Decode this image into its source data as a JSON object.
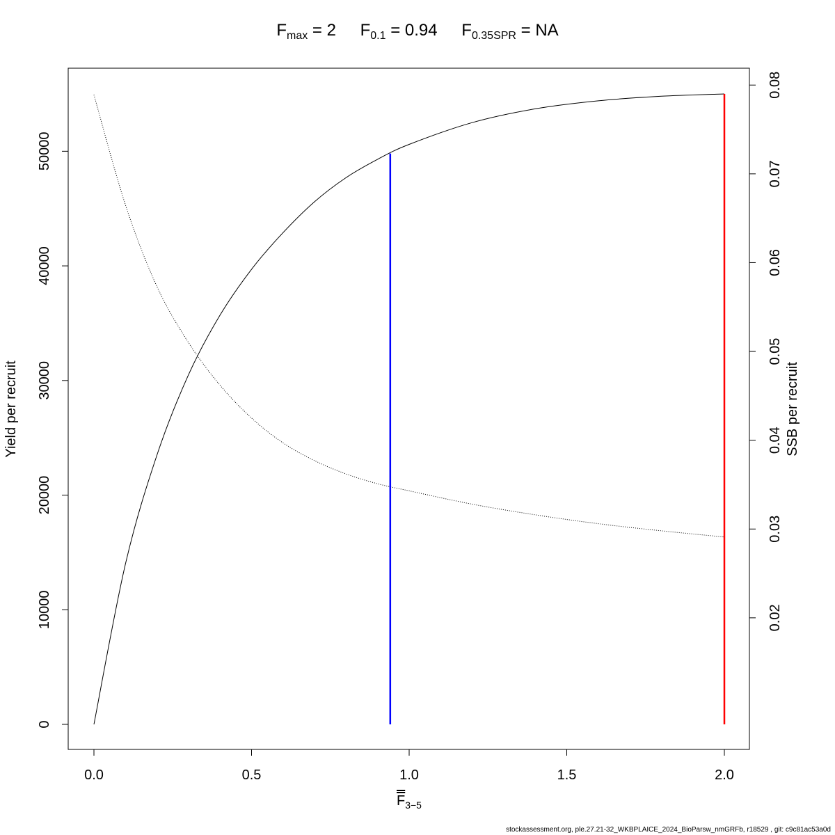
{
  "title": {
    "fmax": {
      "symbol": "F",
      "sub": "max",
      "value": "= 2"
    },
    "f01": {
      "symbol": "F",
      "sub": "0.1",
      "value": "= 0.94"
    },
    "fspr": {
      "symbol": "F",
      "sub": "0.35SPR",
      "value": "= NA"
    }
  },
  "xlabel": {
    "symbol": "F",
    "sub": "3−5"
  },
  "footer": "stockassessment.org, ple.27.21-32_WKBPLAICE_2024_BioParsw_nmGRFb, r18529 , git: c9c81ac53a0d",
  "chart_data": {
    "type": "line",
    "xlabel": "F3-5",
    "ylabel": "Yield per recruit",
    "y2label": "SSB per recruit",
    "xlim": [
      0,
      2
    ],
    "ylim": [
      0,
      55000
    ],
    "y2lim": [
      0.008,
      0.079
    ],
    "x_ticks": [
      "0.0",
      "0.5",
      "1.0",
      "1.5",
      "2.0"
    ],
    "y_ticks": [
      "0",
      "10000",
      "20000",
      "30000",
      "40000",
      "50000"
    ],
    "y2_ticks": [
      "0.02",
      "0.03",
      "0.04",
      "0.05",
      "0.06",
      "0.07",
      "0.08"
    ],
    "series": [
      {
        "name": "Yield per recruit",
        "axis": "left",
        "style": "solid",
        "color": "#000000",
        "x": [
          0.0,
          0.1,
          0.2,
          0.3,
          0.4,
          0.5,
          0.6,
          0.7,
          0.8,
          0.9,
          1.0,
          1.2,
          1.4,
          1.6,
          1.8,
          2.0
        ],
        "y": [
          0,
          14000,
          23500,
          30500,
          35700,
          39700,
          42900,
          45600,
          47700,
          49300,
          50600,
          52500,
          53700,
          54400,
          54800,
          55000
        ]
      },
      {
        "name": "SSB per recruit",
        "axis": "right",
        "style": "dotted",
        "color": "#000000",
        "x": [
          0.0,
          0.1,
          0.2,
          0.3,
          0.4,
          0.5,
          0.6,
          0.7,
          0.8,
          0.9,
          1.0,
          1.2,
          1.4,
          1.6,
          1.8,
          2.0
        ],
        "y": [
          0.0789,
          0.0665,
          0.0573,
          0.051,
          0.0462,
          0.0425,
          0.0397,
          0.0377,
          0.0362,
          0.0351,
          0.0343,
          0.0328,
          0.0316,
          0.0306,
          0.0298,
          0.0291
        ]
      }
    ],
    "reference_lines": [
      {
        "label": "F0.1",
        "x": 0.94,
        "y": 49800,
        "color": "#0000ff"
      },
      {
        "label": "Fmax",
        "x": 2.0,
        "y": 55000,
        "color": "#ff0000"
      }
    ]
  }
}
